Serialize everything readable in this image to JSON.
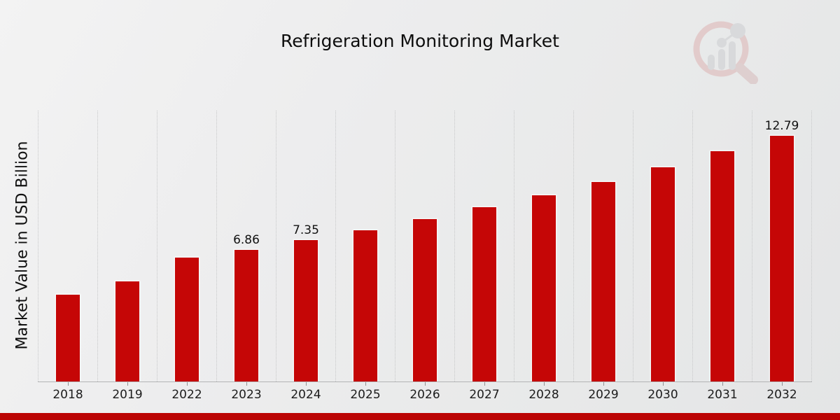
{
  "title": "Refrigeration Monitoring Market",
  "ylabel": "Market Value in USD Billion",
  "colors": {
    "bar": "#c50606",
    "bottom_strip": "#bb0404",
    "grid": "#c7c8c9",
    "axis_line": "#b3b4b5",
    "text": "#111111",
    "watermark_glass": "#dcaeae",
    "watermark_bars": "#c9cbce"
  },
  "watermark_icon": "magnifier-bar-chart-logo",
  "chart_data": {
    "type": "bar",
    "title": "Refrigeration Monitoring Market",
    "xlabel": "",
    "ylabel": "Market Value in USD Billion",
    "categories": [
      "2018",
      "2019",
      "2022",
      "2023",
      "2024",
      "2025",
      "2026",
      "2027",
      "2028",
      "2029",
      "2030",
      "2031",
      "2032"
    ],
    "values": [
      4.5,
      5.2,
      6.44,
      6.86,
      7.35,
      7.87,
      8.45,
      9.08,
      9.7,
      10.4,
      11.16,
      11.97,
      12.79
    ],
    "bar_labels": [
      "",
      "",
      "",
      "6.86",
      "7.35",
      "",
      "",
      "",
      "",
      "",
      "",
      "",
      "12.79"
    ],
    "ylim": [
      0,
      14.1
    ],
    "grid": "vertical-dotted",
    "legend": "none",
    "bar_color": "#c50606"
  }
}
